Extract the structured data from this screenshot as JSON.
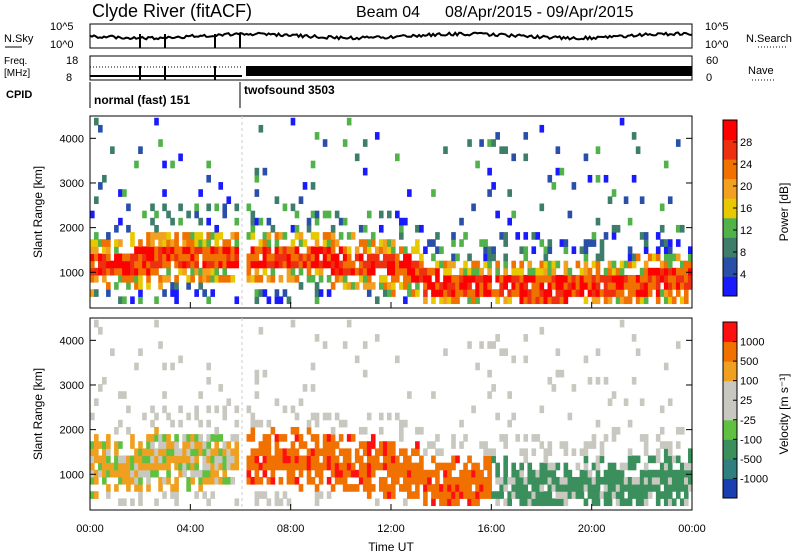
{
  "header": {
    "station": "Clyde River (fitACF)",
    "beam": "Beam 04",
    "date_range": "08/Apr/2015 - 09/Apr/2015"
  },
  "noise_panel": {
    "left_label": "N.Sky",
    "right_label": "N.Search",
    "left_ticks": [
      "10^5",
      "10^0"
    ],
    "right_ticks": [
      "10^5",
      "10^0"
    ]
  },
  "freq_panel": {
    "left_label_line1": "Freq.",
    "left_label_line2": "[MHz]",
    "right_label": "Nave",
    "left_ticks": [
      "18",
      "8"
    ],
    "right_ticks": [
      "60",
      "0"
    ]
  },
  "cpid": {
    "label": "CPID",
    "segments": [
      "normal (fast) 151",
      "twofsound 3503"
    ]
  },
  "chart_data": [
    {
      "type": "heatmap",
      "name": "power",
      "ylabel": "Slant Range [km]",
      "y_ticks": [
        "1000",
        "2000",
        "3000",
        "4000"
      ],
      "ylim": [
        200,
        4500
      ],
      "x_ticks": [
        "00:00",
        "04:00",
        "08:00",
        "12:00",
        "16:00",
        "20:00",
        "00:00"
      ],
      "colorbar": {
        "label": "Power [dB]",
        "ticks": [
          "4",
          "8",
          "12",
          "16",
          "20",
          "24",
          "28"
        ],
        "colors": [
          "#1a1aff",
          "#2a4fa8",
          "#3d7d6a",
          "#52b24a",
          "#e8c800",
          "#f2a020",
          "#f07000",
          "#ee3010",
          "#ff0000"
        ]
      }
    },
    {
      "type": "heatmap",
      "name": "velocity",
      "ylabel": "Slant Range [km]",
      "y_ticks": [
        "1000",
        "2000",
        "3000",
        "4000"
      ],
      "ylim": [
        200,
        4500
      ],
      "x_ticks": [
        "00:00",
        "04:00",
        "08:00",
        "12:00",
        "16:00",
        "20:00",
        "00:00"
      ],
      "xlabel": "Time UT",
      "colorbar": {
        "label": "Velocity [m s⁻¹]",
        "ticks": [
          "1000",
          "500",
          "100",
          "25",
          "-25",
          "-100",
          "-500",
          "-1000"
        ],
        "colors": [
          "#1a3fb0",
          "#2f7f80",
          "#3b8f5c",
          "#60c040",
          "#c8c8c0",
          "#c8c8c0",
          "#f0a020",
          "#f07000",
          "#ff1010"
        ]
      }
    }
  ]
}
